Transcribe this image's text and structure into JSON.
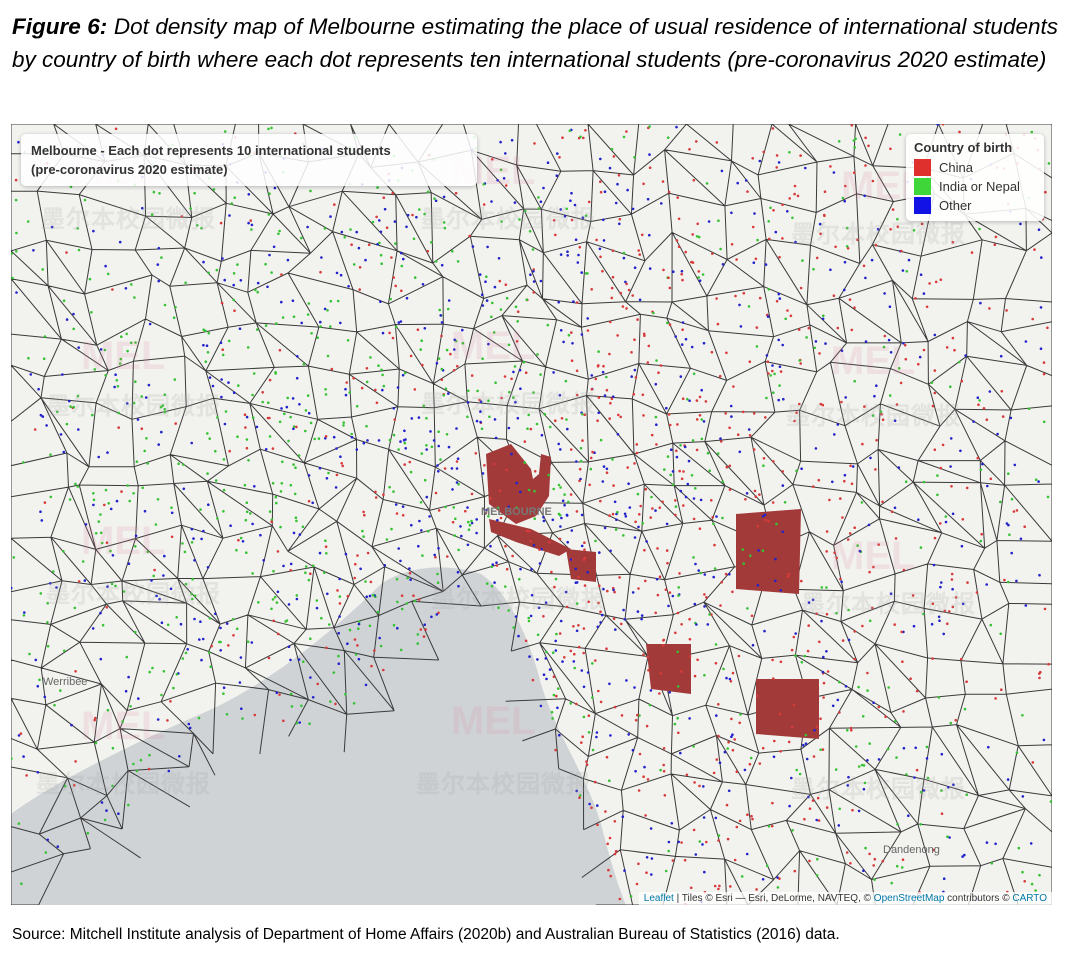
{
  "caption": {
    "figure_label": "Figure 6:",
    "text": "Dot density map of Melbourne estimating the place of usual residence of international students by country of birth where each dot represents ten international students (pre-coronavirus 2020 estimate)"
  },
  "map": {
    "title_line1": "Melbourne - Each dot represents 10 international students",
    "title_line2": "(pre-coronavirus 2020 estimate)",
    "legend": {
      "title": "Country of birth",
      "items": [
        {
          "label": "China",
          "color": "#e0302e"
        },
        {
          "label": "India or Nepal",
          "color": "#3fd63a"
        },
        {
          "label": "Other",
          "color": "#1212e6"
        }
      ]
    },
    "place_labels": {
      "werribee": "Werribee",
      "dandenong": "Dandenong",
      "melbourne": "MELBOURNE"
    },
    "attribution": {
      "leaflet": "Leaflet",
      "tiles": " | Tiles © Esri — Esri, DeLorme, NAVTEQ, © ",
      "osm": "OpenStreetMap",
      "contributors": " contributors © ",
      "carto": "CARTO"
    },
    "watermark_text": "墨尔本校园微报",
    "watermark_logo": "MEL",
    "colors": {
      "land": "#f2f2ef",
      "water": "#cfd3d6",
      "boundary": "#3a3a3a",
      "china_dense": "#a23a3a"
    }
  },
  "source": "Source: Mitchell Institute analysis of Department of Home Affairs (2020b) and Australian Bureau of Statistics (2016) data."
}
